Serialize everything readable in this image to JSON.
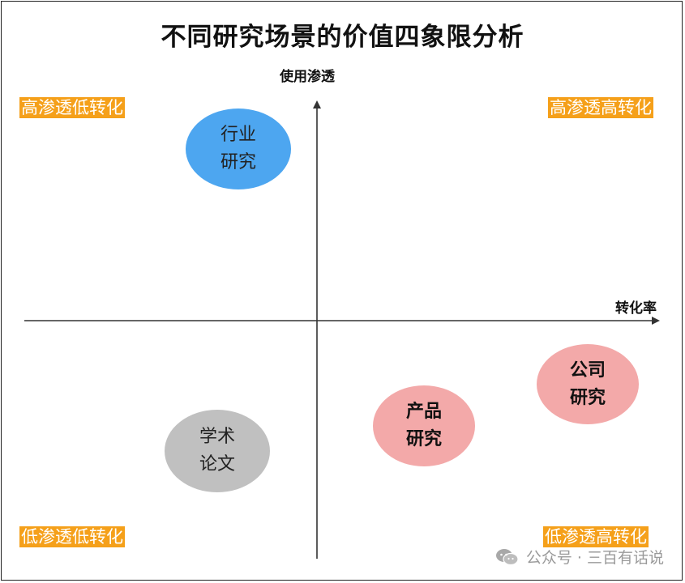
{
  "title": "不同研究场景的价值四象限分析",
  "axes": {
    "y_label": "使用渗透",
    "x_label": "转化率"
  },
  "quadrants": {
    "top_left": "高渗透低转化",
    "top_right": "高渗透高转化",
    "bottom_left": "低渗透低转化",
    "bottom_right": "低渗透高转化"
  },
  "bubbles": {
    "industry": {
      "label": "行业研究",
      "color": "#4da6f0"
    },
    "academic": {
      "label": "学术论文",
      "color": "#c0c0c0"
    },
    "product": {
      "label": "产品研究",
      "color": "#f3a9a9"
    },
    "company": {
      "label": "公司研究",
      "color": "#f3a9a9"
    }
  },
  "colors": {
    "quadrant_label_bg": "#f5a01a",
    "axis": "#333333"
  },
  "watermark": {
    "text": "公众号 · 三百有话说",
    "icon": "wechat-icon"
  }
}
